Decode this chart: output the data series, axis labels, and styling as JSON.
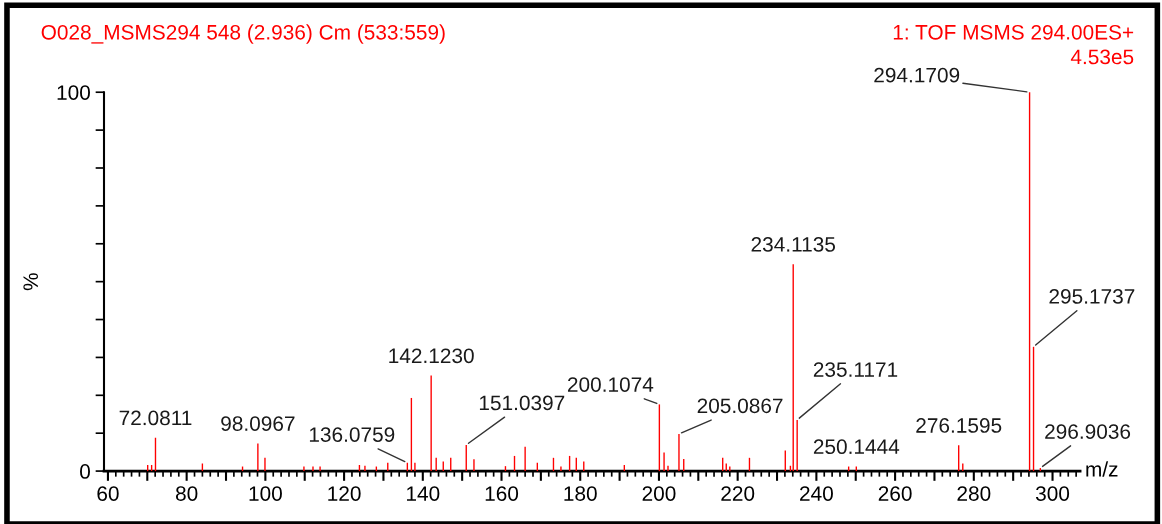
{
  "chart_data": {
    "type": "bar",
    "title": "O028_MSMS294 548 (2.936) Cm (533:559)",
    "xlabel": "m/z",
    "ylabel": "%",
    "x": [
      70.1,
      71.1,
      72.0811,
      84.0,
      94.2,
      98.0967,
      99.9,
      109.8,
      112.1,
      113.9,
      123.9,
      125.3,
      128.2,
      131.1,
      136.0759,
      137.1,
      138.0,
      142.123,
      143.4,
      145.2,
      147.1,
      151.0397,
      153.0,
      161.0,
      163.3,
      166.0,
      169.1,
      173.2,
      175.1,
      177.3,
      179.0,
      180.9,
      191.2,
      200.1074,
      201.3,
      202.3,
      205.0867,
      206.3,
      216.2,
      217.1,
      218.0,
      223.0,
      232.1,
      233.4,
      234.1135,
      235.1171,
      248.2,
      250.1444,
      276.1595,
      277.2,
      294.1709,
      295.1737,
      296.9036
    ],
    "values": [
      1.6,
      1.6,
      8.8,
      2.0,
      1.2,
      7.3,
      3.5,
      1.2,
      1.2,
      1.2,
      1.6,
      1.4,
      1.2,
      2.2,
      2.2,
      19.3,
      2.2,
      25.2,
      3.5,
      2.5,
      3.5,
      6.9,
      3.1,
      1.3,
      4.0,
      6.4,
      2.2,
      3.5,
      1.2,
      4.0,
      3.5,
      2.5,
      1.6,
      17.6,
      4.9,
      1.4,
      9.8,
      3.2,
      3.5,
      2.0,
      1.2,
      3.5,
      5.4,
      1.4,
      54.6,
      13.5,
      1.2,
      1.2,
      6.8,
      2.0,
      100,
      32.8,
      0.8
    ],
    "color": "#ff0000",
    "xlim": [
      59,
      307
    ],
    "ylim": [
      0,
      100
    ],
    "xticks": [
      60,
      {
        "value": 70,
        "label": null
      },
      80,
      {
        "value": 90,
        "label": null
      },
      100,
      {
        "value": 110,
        "label": null
      },
      120,
      {
        "value": 130,
        "label": null
      },
      140,
      {
        "value": 150,
        "label": null
      },
      160,
      {
        "value": 170,
        "label": null
      },
      180,
      {
        "value": 190,
        "label": null
      },
      200,
      {
        "value": 210,
        "label": null
      },
      220,
      {
        "value": 230,
        "label": null
      },
      240,
      {
        "value": 250,
        "label": null
      },
      260,
      {
        "value": 270,
        "label": null
      },
      280,
      {
        "value": 290,
        "label": null
      },
      300
    ],
    "yticks": [
      0,
      {
        "value": 10,
        "label": null
      },
      {
        "value": 20,
        "label": null
      },
      {
        "value": 30,
        "label": null
      },
      {
        "value": 40,
        "label": null
      },
      {
        "value": 50,
        "label": null
      },
      {
        "value": 60,
        "label": null
      },
      {
        "value": 70,
        "label": null
      },
      {
        "value": 80,
        "label": null
      },
      {
        "value": 90,
        "label": null
      },
      100
    ],
    "annotations": [
      "1: TOF MSMS 294.00ES+",
      "4.53e5",
      {
        "text": "72.0811",
        "x": 72.0811,
        "y": 8.8
      },
      {
        "text": "98.0967",
        "x": 98.0967,
        "y": 7.3
      },
      {
        "text": "136.0759",
        "x": 136.0759,
        "y": 2.2
      },
      {
        "text": "142.1230",
        "x": 142.123,
        "y": 25.2
      },
      {
        "text": "151.0397",
        "x": 151.0397,
        "y": 6.9
      },
      {
        "text": "200.1074",
        "x": 200.1074,
        "y": 17.6
      },
      {
        "text": "205.0867",
        "x": 205.0867,
        "y": 9.8
      },
      {
        "text": "234.1135",
        "x": 234.1135,
        "y": 54.6
      },
      {
        "text": "235.1171",
        "x": 235.1171,
        "y": 13.5
      },
      {
        "text": "250.1444",
        "x": 250.1444,
        "y": 1.2
      },
      {
        "text": "276.1595",
        "x": 276.1595,
        "y": 6.8
      },
      {
        "text": "294.1709",
        "x": 294.1709,
        "y": 100
      },
      {
        "text": "295.1737",
        "x": 295.1737,
        "y": 32.8
      },
      {
        "text": "296.9036",
        "x": 296.9036,
        "y": 0.8
      }
    ],
    "grid": false,
    "legend": false
  }
}
